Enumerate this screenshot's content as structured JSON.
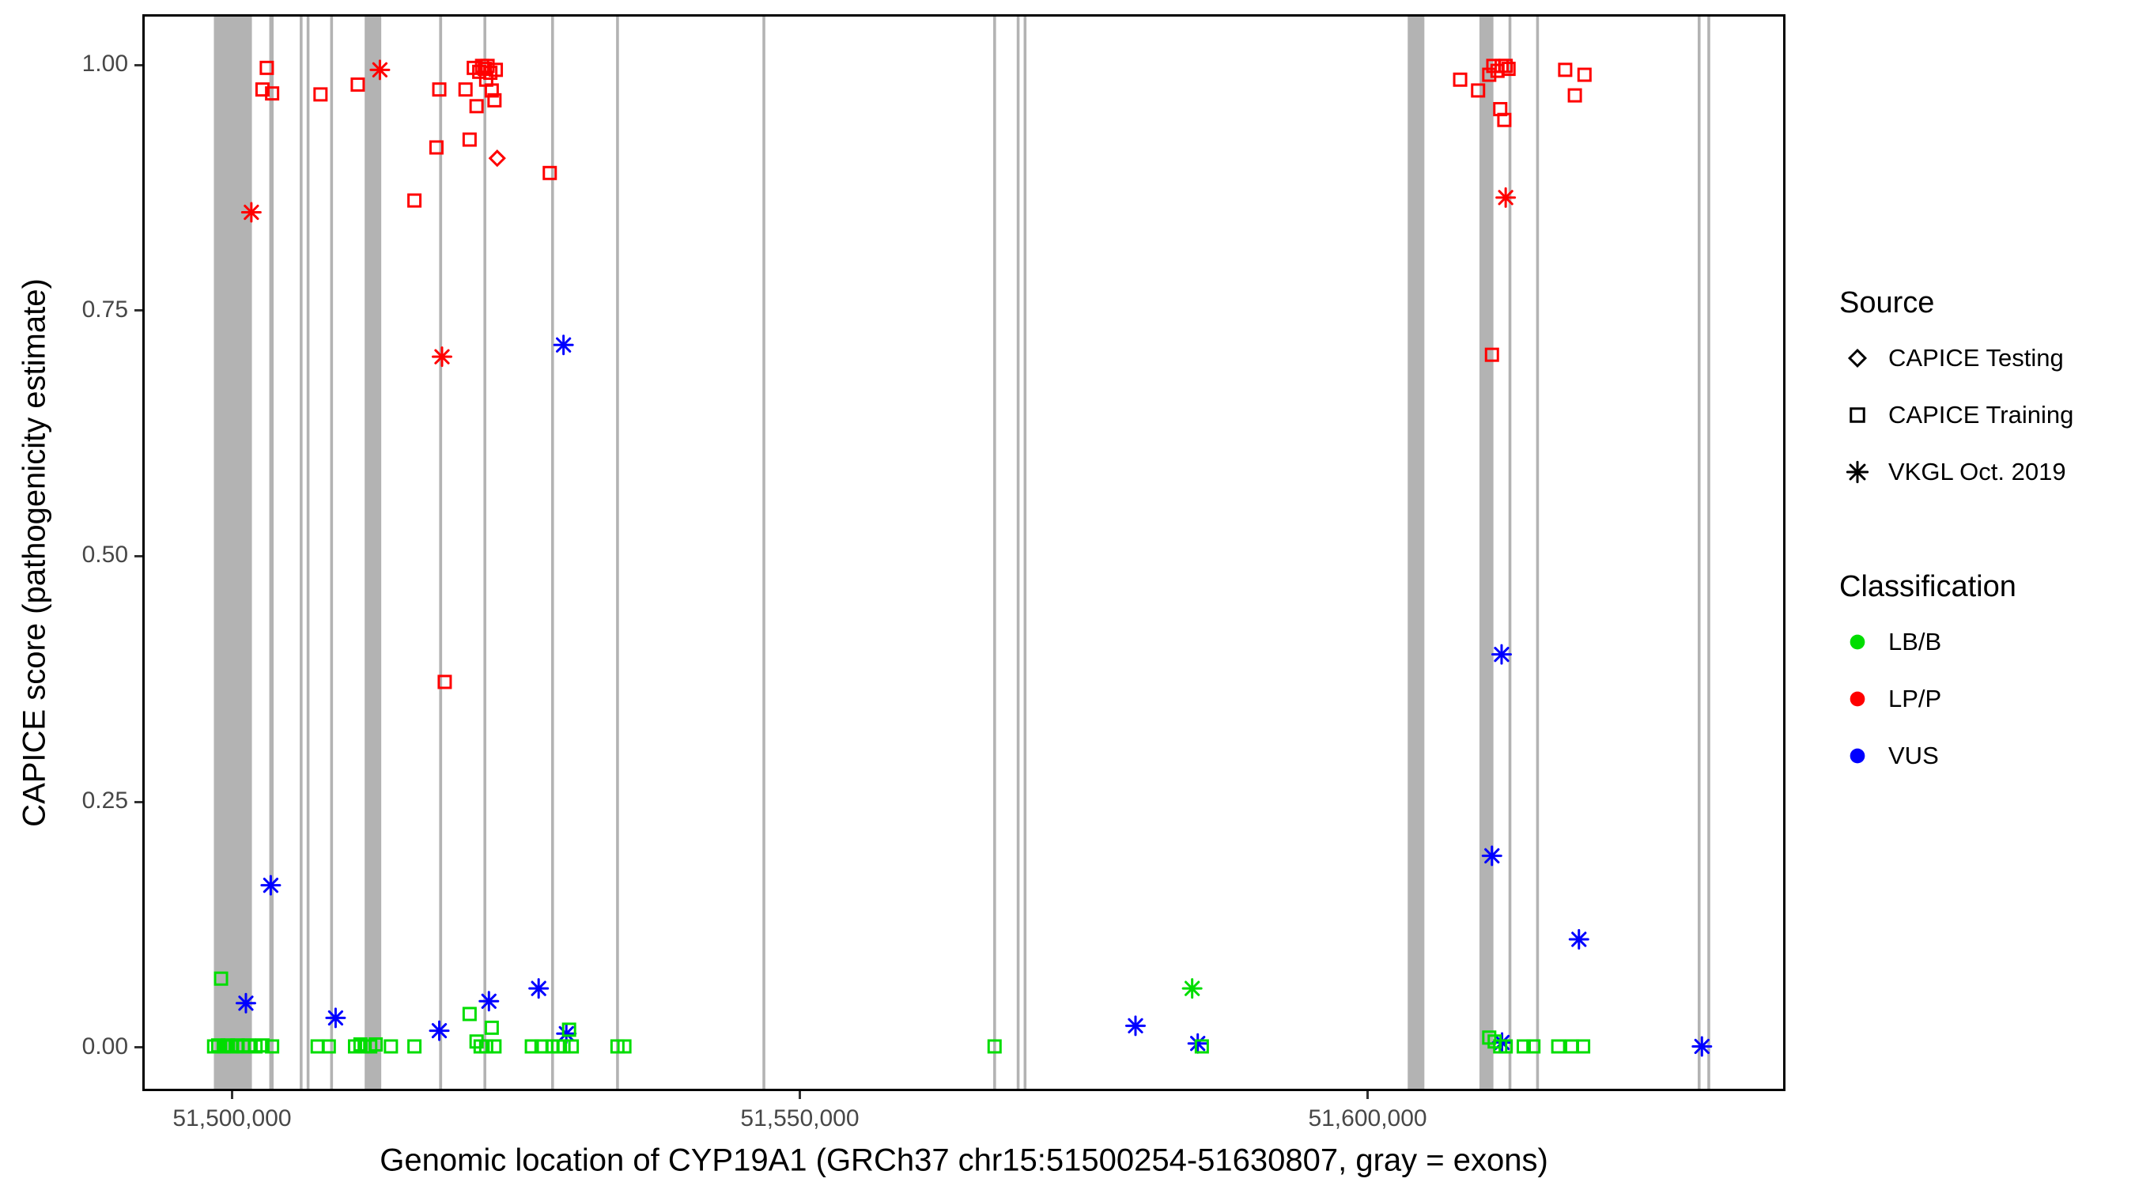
{
  "chart_data": {
    "type": "scatter",
    "title": "",
    "xlabel": "Genomic location of CYP19A1 (GRCh37 chr15:51500254-51630807, gray = exons)",
    "ylabel": "CAPICE score (pathogenicity estimate)",
    "x_domain": [
      51492100,
      51636800
    ],
    "y_domain": [
      -0.0445,
      1.0516
    ],
    "grid": "off",
    "legend_position": "right",
    "x_ticks": [
      {
        "value": 51500000,
        "label": "51,500,000"
      },
      {
        "value": 51550000,
        "label": "51,550,000"
      },
      {
        "value": 51600000,
        "label": "51,600,000"
      }
    ],
    "y_ticks": [
      {
        "value": 0.0,
        "label": "0.00"
      },
      {
        "value": 0.25,
        "label": "0.25"
      },
      {
        "value": 0.5,
        "label": "0.50"
      },
      {
        "value": 0.75,
        "label": "0.75"
      },
      {
        "value": 1.0,
        "label": "1.00"
      }
    ],
    "exons": [
      [
        51498400,
        51501750
      ],
      [
        51503280,
        51503660
      ],
      [
        51505960,
        51506210
      ],
      [
        51506570,
        51506820
      ],
      [
        51508640,
        51508890
      ],
      [
        51511680,
        51513140
      ],
      [
        51518240,
        51518500
      ],
      [
        51522140,
        51522390
      ],
      [
        51528100,
        51528350
      ],
      [
        51533820,
        51534070
      ],
      [
        51546710,
        51546960
      ],
      [
        51567030,
        51567280
      ],
      [
        51569100,
        51569350
      ],
      [
        51569710,
        51569960
      ],
      [
        51603530,
        51605000
      ],
      [
        51609850,
        51611080
      ],
      [
        51612410,
        51612660
      ],
      [
        51614840,
        51615090
      ],
      [
        51629070,
        51629320
      ],
      [
        51629920,
        51630170
      ]
    ],
    "points": [
      [
        51502680,
        0.975,
        "T",
        "LP/P"
      ],
      [
        51503060,
        0.997,
        "T",
        "LP/P"
      ],
      [
        51503530,
        0.971,
        "T",
        "LP/P"
      ],
      [
        51507790,
        0.97,
        "T",
        "LP/P"
      ],
      [
        51511070,
        0.98,
        "T",
        "LP/P"
      ],
      [
        51516060,
        0.862,
        "T",
        "LP/P"
      ],
      [
        51518000,
        0.916,
        "T",
        "LP/P"
      ],
      [
        51518250,
        0.975,
        "T",
        "LP/P"
      ],
      [
        51518730,
        0.372,
        "T",
        "LP/P"
      ],
      [
        51520560,
        0.975,
        "T",
        "LP/P"
      ],
      [
        51520920,
        0.924,
        "T",
        "LP/P"
      ],
      [
        51521290,
        0.997,
        "T",
        "LP/P"
      ],
      [
        51521530,
        0.958,
        "T",
        "LP/P"
      ],
      [
        51521770,
        0.993,
        "T",
        "LP/P"
      ],
      [
        51522020,
        0.999,
        "T",
        "LP/P"
      ],
      [
        51522260,
        0.996,
        "T",
        "LP/P"
      ],
      [
        51522380,
        0.985,
        "T",
        "LP/P"
      ],
      [
        51522500,
        0.999,
        "T",
        "LP/P"
      ],
      [
        51522750,
        0.992,
        "T",
        "LP/P"
      ],
      [
        51522870,
        0.974,
        "T",
        "LP/P"
      ],
      [
        51523110,
        0.964,
        "T",
        "LP/P"
      ],
      [
        51523230,
        0.995,
        "T",
        "LP/P"
      ],
      [
        51527980,
        0.89,
        "T",
        "LP/P"
      ],
      [
        51608150,
        0.985,
        "T",
        "LP/P"
      ],
      [
        51609730,
        0.974,
        "T",
        "LP/P"
      ],
      [
        51610710,
        0.99,
        "T",
        "LP/P"
      ],
      [
        51611070,
        0.999,
        "T",
        "LP/P"
      ],
      [
        51611440,
        0.994,
        "T",
        "LP/P"
      ],
      [
        51611800,
        0.999,
        "T",
        "LP/P"
      ],
      [
        51612160,
        0.999,
        "T",
        "LP/P"
      ],
      [
        51612410,
        0.996,
        "T",
        "LP/P"
      ],
      [
        51611680,
        0.955,
        "T",
        "LP/P"
      ],
      [
        51612040,
        0.944,
        "T",
        "LP/P"
      ],
      [
        51610950,
        0.705,
        "T",
        "LP/P"
      ],
      [
        51617400,
        0.995,
        "T",
        "LP/P"
      ],
      [
        51618250,
        0.969,
        "T",
        "LP/P"
      ],
      [
        51619100,
        0.99,
        "T",
        "LP/P"
      ],
      [
        51501700,
        0.85,
        "V",
        "LP/P"
      ],
      [
        51513020,
        0.995,
        "V",
        "LP/P"
      ],
      [
        51518490,
        0.703,
        "V",
        "LP/P"
      ],
      [
        51612160,
        0.865,
        "V",
        "LP/P"
      ],
      [
        51523350,
        0.905,
        "D",
        "LP/P"
      ],
      [
        51501220,
        0.045,
        "V",
        "VUS"
      ],
      [
        51503410,
        0.165,
        "V",
        "VUS"
      ],
      [
        51509120,
        0.03,
        "V",
        "VUS"
      ],
      [
        51518250,
        0.017,
        "V",
        "VUS"
      ],
      [
        51522620,
        0.047,
        "V",
        "VUS"
      ],
      [
        51527000,
        0.06,
        "V",
        "VUS"
      ],
      [
        51529190,
        0.715,
        "V",
        "VUS"
      ],
      [
        51529440,
        0.014,
        "V",
        "VUS"
      ],
      [
        51579560,
        0.022,
        "V",
        "VUS"
      ],
      [
        51585040,
        0.004,
        "V",
        "VUS"
      ],
      [
        51610950,
        0.195,
        "V",
        "VUS"
      ],
      [
        51611800,
        0.4,
        "V",
        "VUS"
      ],
      [
        51611840,
        0.005,
        "V",
        "VUS"
      ],
      [
        51618610,
        0.11,
        "V",
        "VUS"
      ],
      [
        51629440,
        0.001,
        "V",
        "VUS"
      ],
      [
        51584550,
        0.06,
        "V",
        "LB/B"
      ],
      [
        51499030,
        0.07,
        "T",
        "LB/B"
      ],
      [
        51498420,
        0.001,
        "T",
        "LB/B"
      ],
      [
        51498780,
        0.002,
        "T",
        "LB/B"
      ],
      [
        51499270,
        0.001,
        "T",
        "LB/B"
      ],
      [
        51499640,
        0.002,
        "T",
        "LB/B"
      ],
      [
        51500000,
        0.001,
        "T",
        "LB/B"
      ],
      [
        51500490,
        0.002,
        "T",
        "LB/B"
      ],
      [
        51500970,
        0.001,
        "T",
        "LB/B"
      ],
      [
        51501460,
        0.002,
        "T",
        "LB/B"
      ],
      [
        51502070,
        0.001,
        "T",
        "LB/B"
      ],
      [
        51502680,
        0.002,
        "T",
        "LB/B"
      ],
      [
        51503530,
        0.001,
        "T",
        "LB/B"
      ],
      [
        51507540,
        0.001,
        "T",
        "LB/B"
      ],
      [
        51508520,
        0.001,
        "T",
        "LB/B"
      ],
      [
        51510830,
        0.001,
        "T",
        "LB/B"
      ],
      [
        51511310,
        0.003,
        "T",
        "LB/B"
      ],
      [
        51511680,
        0.001,
        "T",
        "LB/B"
      ],
      [
        51512170,
        0.001,
        "T",
        "LB/B"
      ],
      [
        51512650,
        0.003,
        "T",
        "LB/B"
      ],
      [
        51513990,
        0.001,
        "T",
        "LB/B"
      ],
      [
        51516060,
        0.001,
        "T",
        "LB/B"
      ],
      [
        51520920,
        0.034,
        "T",
        "LB/B"
      ],
      [
        51521530,
        0.006,
        "T",
        "LB/B"
      ],
      [
        51521890,
        0.001,
        "T",
        "LB/B"
      ],
      [
        51522380,
        0.001,
        "T",
        "LB/B"
      ],
      [
        51522870,
        0.02,
        "T",
        "LB/B"
      ],
      [
        51523110,
        0.001,
        "T",
        "LB/B"
      ],
      [
        51526400,
        0.001,
        "T",
        "LB/B"
      ],
      [
        51527250,
        0.001,
        "T",
        "LB/B"
      ],
      [
        51528220,
        0.001,
        "T",
        "LB/B"
      ],
      [
        51528710,
        0.001,
        "T",
        "LB/B"
      ],
      [
        51529190,
        0.001,
        "T",
        "LB/B"
      ],
      [
        51529680,
        0.018,
        "T",
        "LB/B"
      ],
      [
        51529920,
        0.001,
        "T",
        "LB/B"
      ],
      [
        51533940,
        0.001,
        "T",
        "LB/B"
      ],
      [
        51534550,
        0.001,
        "T",
        "LB/B"
      ],
      [
        51567150,
        0.001,
        "T",
        "LB/B"
      ],
      [
        51585400,
        0.001,
        "T",
        "LB/B"
      ],
      [
        51610710,
        0.01,
        "T",
        "LB/B"
      ],
      [
        51611190,
        0.006,
        "T",
        "LB/B"
      ],
      [
        51611680,
        0.001,
        "T",
        "LB/B"
      ],
      [
        51612160,
        0.001,
        "T",
        "LB/B"
      ],
      [
        51613750,
        0.001,
        "T",
        "LB/B"
      ],
      [
        51614600,
        0.001,
        "T",
        "LB/B"
      ],
      [
        51616790,
        0.001,
        "T",
        "LB/B"
      ],
      [
        51618000,
        0.001,
        "T",
        "LB/B"
      ],
      [
        51618980,
        0.001,
        "T",
        "LB/B"
      ]
    ],
    "symbol_map": {
      "T": "square",
      "D": "diamond",
      "V": "asterisk"
    },
    "source_labels": {
      "T": "CAPICE Training",
      "D": "CAPICE Testing",
      "V": "VKGL Oct. 2019"
    }
  },
  "legend": {
    "source": {
      "title": "Source",
      "items": [
        {
          "label": "CAPICE Testing",
          "shape": "diamond"
        },
        {
          "label": "CAPICE Training",
          "shape": "square"
        },
        {
          "label": "VKGL Oct. 2019",
          "shape": "asterisk"
        }
      ]
    },
    "classification": {
      "title": "Classification",
      "items": [
        {
          "label": "LB/B",
          "color_key": "LB/B"
        },
        {
          "label": "LP/P",
          "color_key": "LP/P"
        },
        {
          "label": "VUS",
          "color_key": "VUS"
        }
      ]
    }
  },
  "colors": {
    "exon": "#b3b3b3",
    "panel_border": "#000000",
    "legend_symbol": "#000000",
    "classification": {
      "LB/B": "#00dd00",
      "LP/P": "#ff0000",
      "VUS": "#0000ff"
    }
  }
}
